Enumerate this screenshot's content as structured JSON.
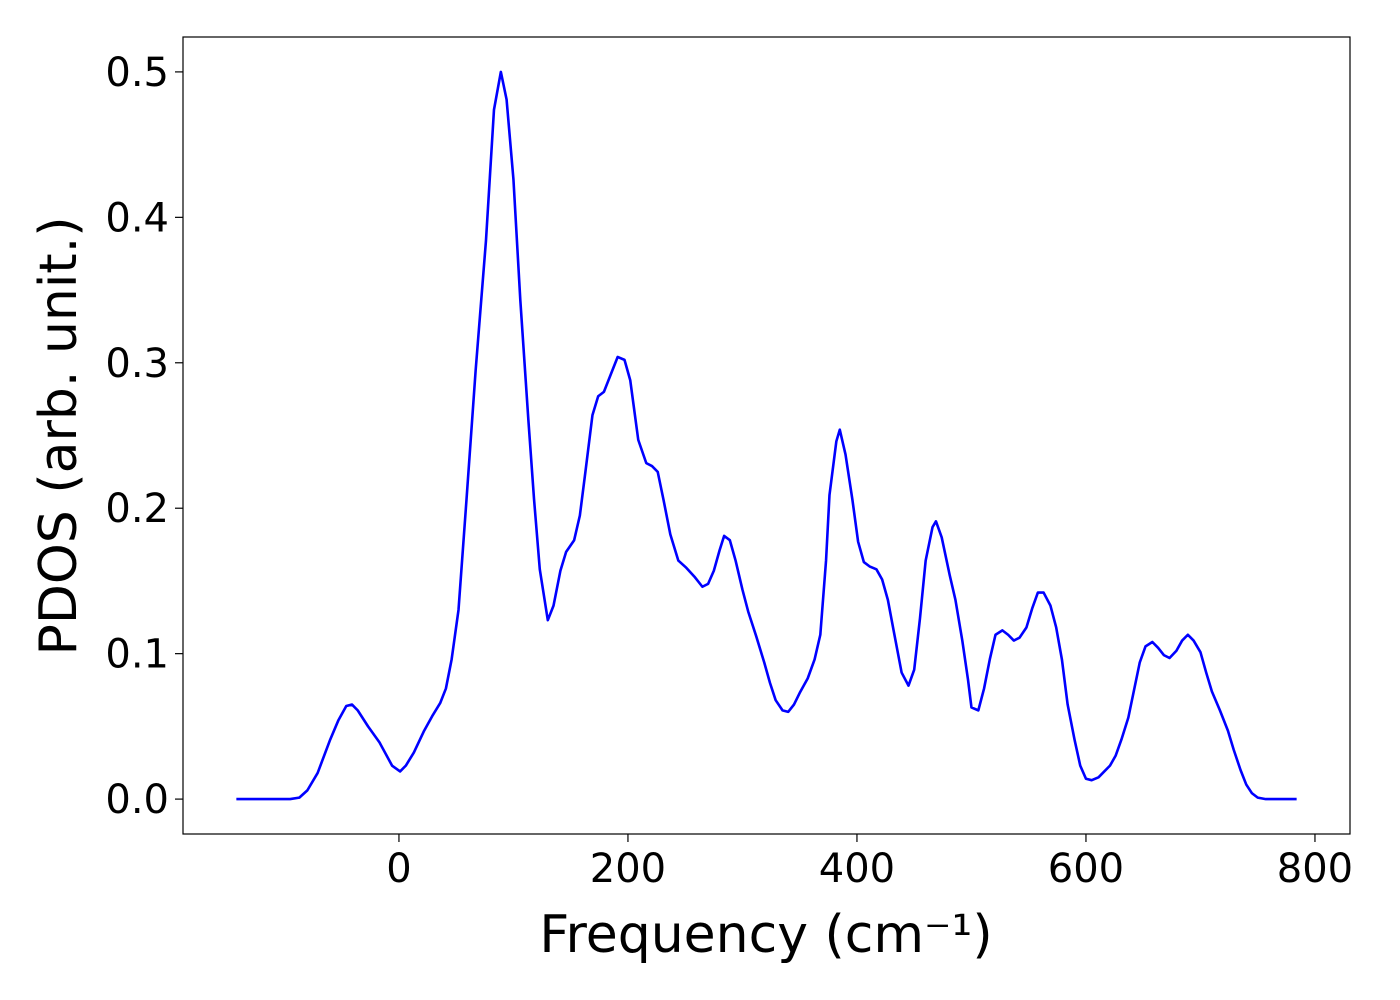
{
  "chart_data": {
    "type": "line",
    "xlabel": "Frequency (cm⁻¹)",
    "ylabel": "PDOS (arb. unit.)",
    "xlim": [
      -188.6,
      830.6
    ],
    "ylim": [
      -0.024,
      0.524
    ],
    "xticks": [
      0,
      200,
      400,
      600,
      800
    ],
    "yticks": [
      {
        "value": 0,
        "label": "0.0"
      },
      0.1,
      0.2,
      0.3,
      0.4,
      0.5
    ],
    "grid": false,
    "series": [
      {
        "name": "PDOS",
        "color": "#0000ff",
        "x": [
          -142,
          -95,
          -87,
          -80,
          -71,
          -60,
          -53,
          -46,
          -41,
          -36,
          -27,
          -17,
          -6,
          1,
          6,
          13,
          22,
          29,
          36,
          41,
          46,
          52,
          59,
          67,
          76,
          83,
          89,
          94,
          100,
          106,
          113,
          118,
          123,
          130,
          135,
          141,
          146,
          153,
          158,
          163,
          169,
          174,
          179,
          186,
          191,
          197,
          202,
          209,
          216,
          221,
          226,
          231,
          237,
          244,
          251,
          258,
          265,
          270,
          275,
          280,
          284,
          289,
          294,
          300,
          305,
          312,
          319,
          324,
          329,
          335,
          340,
          345,
          350,
          357,
          363,
          368,
          373,
          376,
          382,
          385,
          390,
          396,
          401,
          406,
          411,
          417,
          422,
          427,
          432,
          439,
          445,
          450,
          455,
          460,
          466,
          469,
          474,
          481,
          486,
          492,
          497,
          500,
          506,
          511,
          516,
          521,
          527,
          532,
          537,
          542,
          548,
          553,
          558,
          563,
          569,
          574,
          579,
          584,
          590,
          595,
          600,
          605,
          611,
          616,
          621,
          626,
          631,
          637,
          642,
          647,
          652,
          658,
          663,
          668,
          673,
          679,
          684,
          689,
          694,
          700,
          705,
          710,
          717,
          724,
          729,
          735,
          740,
          745,
          750,
          757,
          784
        ],
        "values": [
          0,
          0,
          0.001,
          0.006,
          0.018,
          0.041,
          0.054,
          0.064,
          0.065,
          0.061,
          0.05,
          0.039,
          0.023,
          0.019,
          0.023,
          0.032,
          0.047,
          0.057,
          0.066,
          0.076,
          0.096,
          0.13,
          0.206,
          0.295,
          0.384,
          0.474,
          0.5,
          0.481,
          0.426,
          0.343,
          0.261,
          0.206,
          0.158,
          0.123,
          0.133,
          0.157,
          0.17,
          0.178,
          0.195,
          0.226,
          0.264,
          0.277,
          0.28,
          0.294,
          0.304,
          0.302,
          0.288,
          0.247,
          0.231,
          0.229,
          0.225,
          0.206,
          0.182,
          0.164,
          0.159,
          0.153,
          0.146,
          0.148,
          0.157,
          0.171,
          0.181,
          0.178,
          0.164,
          0.144,
          0.129,
          0.112,
          0.094,
          0.08,
          0.068,
          0.061,
          0.06,
          0.065,
          0.073,
          0.083,
          0.096,
          0.113,
          0.164,
          0.209,
          0.246,
          0.254,
          0.237,
          0.206,
          0.177,
          0.163,
          0.16,
          0.158,
          0.151,
          0.137,
          0.116,
          0.087,
          0.078,
          0.089,
          0.124,
          0.164,
          0.187,
          0.191,
          0.18,
          0.154,
          0.137,
          0.109,
          0.082,
          0.063,
          0.061,
          0.076,
          0.096,
          0.113,
          0.116,
          0.113,
          0.109,
          0.111,
          0.118,
          0.131,
          0.142,
          0.142,
          0.133,
          0.118,
          0.096,
          0.065,
          0.041,
          0.023,
          0.014,
          0.013,
          0.015,
          0.019,
          0.023,
          0.03,
          0.041,
          0.056,
          0.075,
          0.094,
          0.105,
          0.108,
          0.104,
          0.099,
          0.097,
          0.102,
          0.109,
          0.113,
          0.109,
          0.101,
          0.087,
          0.074,
          0.061,
          0.047,
          0.034,
          0.02,
          0.01,
          0.004,
          0.001,
          0,
          0
        ]
      }
    ]
  }
}
